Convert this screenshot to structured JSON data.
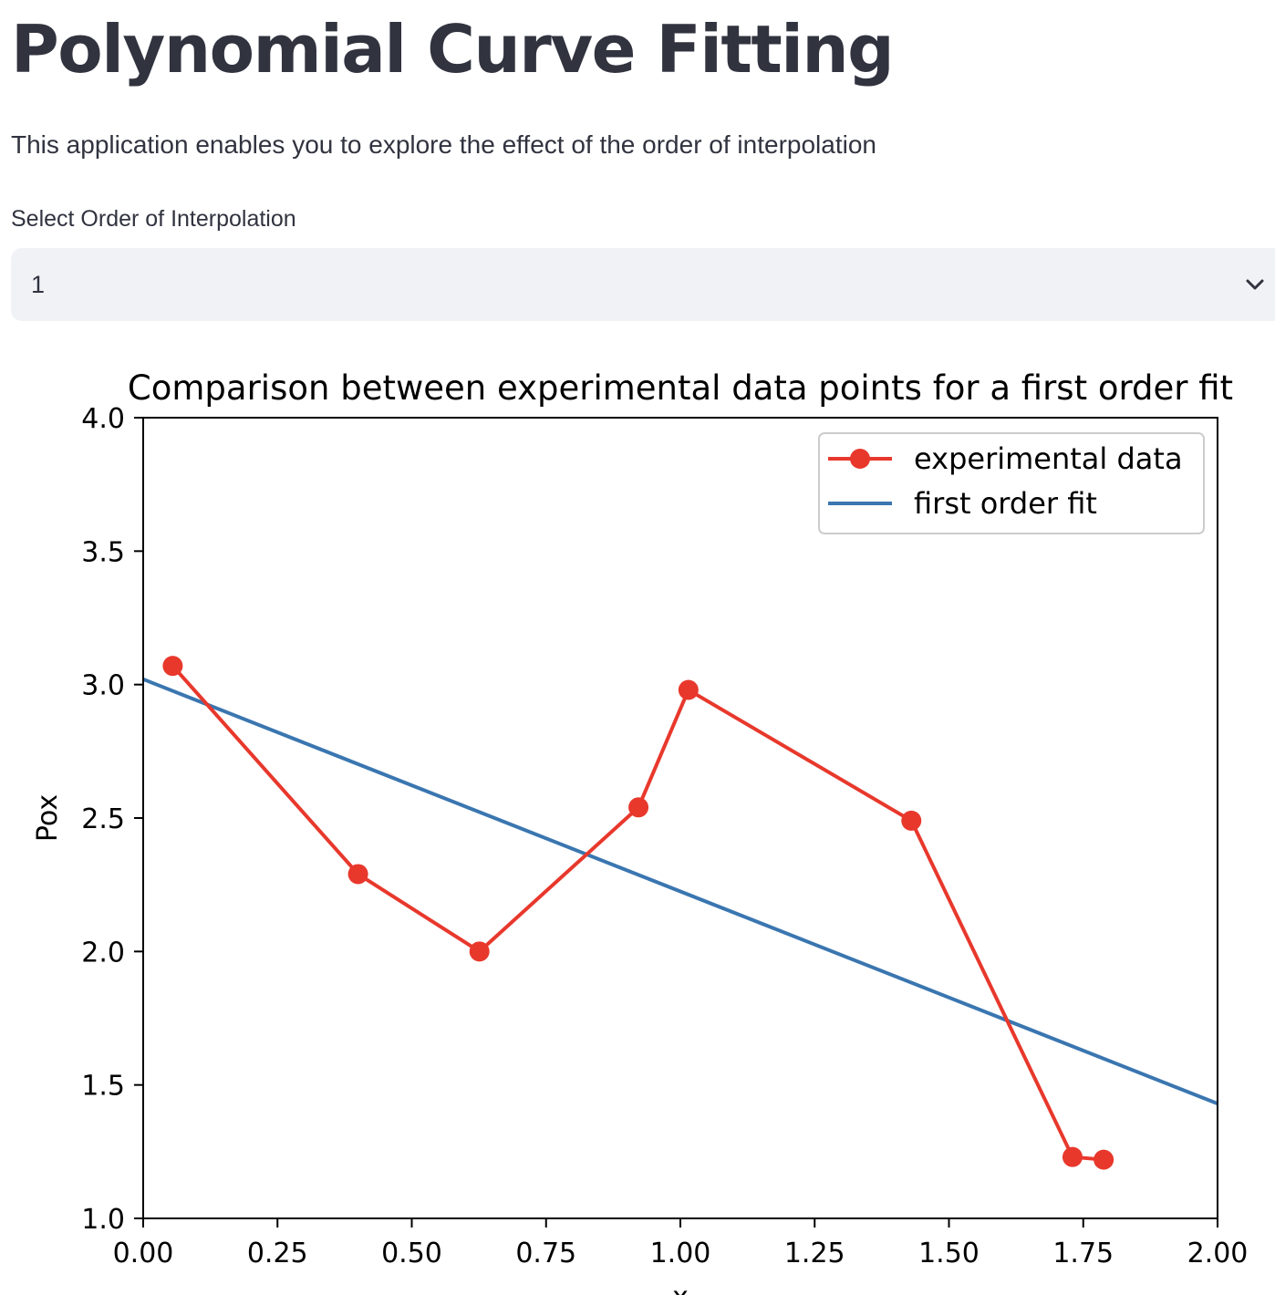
{
  "page": {
    "title": "Polynomial Curve Fitting",
    "description": "This application enables you to explore the effect of the order of interpolation"
  },
  "order_select": {
    "label": "Select Order of Interpolation",
    "selected": "1",
    "icon": "chevron-down-icon"
  },
  "chart_data": {
    "type": "line",
    "title": "Comparison between experimental data points for a first order fit",
    "xlabel": "x",
    "ylabel": "Pox",
    "xlim": [
      0.0,
      2.0
    ],
    "ylim": [
      1.0,
      4.0
    ],
    "x_ticks": [
      "0.00",
      "0.25",
      "0.50",
      "0.75",
      "1.00",
      "1.25",
      "1.50",
      "1.75",
      "2.00"
    ],
    "y_ticks": [
      "1.0",
      "1.5",
      "2.0",
      "2.5",
      "3.0",
      "3.5",
      "4.0"
    ],
    "grid": false,
    "legend_position": "top-right",
    "series": [
      {
        "name": "experimental data",
        "color": "#e8382c",
        "style": "line-with-markers",
        "x": [
          0.055,
          0.4,
          0.626,
          0.922,
          1.015,
          1.43,
          1.73,
          1.788
        ],
        "y": [
          3.07,
          2.29,
          2.0,
          2.54,
          2.98,
          2.49,
          1.23,
          1.22
        ]
      },
      {
        "name": "first order fit",
        "color": "#3a76b0",
        "style": "line",
        "x": [
          0.0,
          2.0
        ],
        "y": [
          3.02,
          1.43
        ]
      }
    ]
  }
}
